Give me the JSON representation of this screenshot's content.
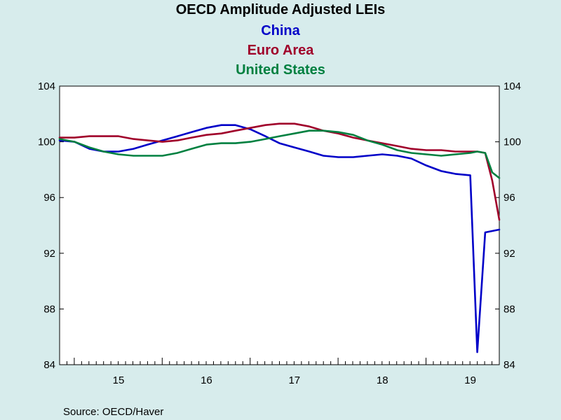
{
  "chart_data": {
    "type": "line",
    "title": "OECD Amplitude Adjusted LEIs",
    "source": "Source:  OECD/Haver",
    "ylim": [
      84,
      104
    ],
    "yticks": [
      84,
      88,
      92,
      96,
      100,
      104
    ],
    "xlim": [
      2014.83,
      2019.83
    ],
    "xtick_labels": [
      {
        "label": "15",
        "year": 2015
      },
      {
        "label": "16",
        "year": 2016
      },
      {
        "label": "17",
        "year": 2017
      },
      {
        "label": "18",
        "year": 2018
      },
      {
        "label": "19",
        "year": 2019
      }
    ],
    "grid": false,
    "legend": "title",
    "series": [
      {
        "name": "China",
        "color": "#0000c8",
        "x": [
          2014.83,
          2015.0,
          2015.17,
          2015.33,
          2015.5,
          2015.67,
          2015.83,
          2016.0,
          2016.17,
          2016.33,
          2016.5,
          2016.67,
          2016.83,
          2017.0,
          2017.17,
          2017.33,
          2017.5,
          2017.67,
          2017.83,
          2018.0,
          2018.17,
          2018.33,
          2018.5,
          2018.67,
          2018.83,
          2019.0,
          2019.17,
          2019.33,
          2019.5,
          2019.58,
          2019.67,
          2019.75,
          2019.83
        ],
        "values": [
          100.1,
          100.0,
          99.5,
          99.3,
          99.3,
          99.5,
          99.8,
          100.1,
          100.4,
          100.7,
          101.0,
          101.2,
          101.2,
          100.9,
          100.4,
          99.9,
          99.6,
          99.3,
          99.0,
          98.9,
          98.9,
          99.0,
          99.1,
          99.0,
          98.8,
          98.3,
          97.9,
          97.7,
          97.6,
          84.9,
          93.5,
          93.6,
          93.7
        ]
      },
      {
        "name": "Euro Area",
        "color": "#a0002a",
        "x": [
          2014.83,
          2015.0,
          2015.17,
          2015.33,
          2015.5,
          2015.67,
          2015.83,
          2016.0,
          2016.17,
          2016.33,
          2016.5,
          2016.67,
          2016.83,
          2017.0,
          2017.17,
          2017.33,
          2017.5,
          2017.67,
          2017.83,
          2018.0,
          2018.17,
          2018.33,
          2018.5,
          2018.67,
          2018.83,
          2019.0,
          2019.17,
          2019.33,
          2019.5,
          2019.58,
          2019.67,
          2019.75,
          2019.83
        ],
        "values": [
          100.3,
          100.3,
          100.4,
          100.4,
          100.4,
          100.2,
          100.1,
          100.0,
          100.1,
          100.3,
          100.5,
          100.6,
          100.8,
          101.0,
          101.2,
          101.3,
          101.3,
          101.1,
          100.8,
          100.6,
          100.3,
          100.1,
          99.9,
          99.7,
          99.5,
          99.4,
          99.4,
          99.3,
          99.3,
          99.3,
          99.2,
          97.2,
          94.4
        ]
      },
      {
        "name": "United States",
        "color": "#008040",
        "x": [
          2014.83,
          2015.0,
          2015.17,
          2015.33,
          2015.5,
          2015.67,
          2015.83,
          2016.0,
          2016.17,
          2016.33,
          2016.5,
          2016.67,
          2016.83,
          2017.0,
          2017.17,
          2017.33,
          2017.5,
          2017.67,
          2017.83,
          2018.0,
          2018.17,
          2018.33,
          2018.5,
          2018.67,
          2018.83,
          2019.0,
          2019.17,
          2019.33,
          2019.5,
          2019.58,
          2019.67,
          2019.75,
          2019.83
        ],
        "values": [
          100.2,
          100.0,
          99.6,
          99.3,
          99.1,
          99.0,
          99.0,
          99.0,
          99.2,
          99.5,
          99.8,
          99.9,
          99.9,
          100.0,
          100.2,
          100.4,
          100.6,
          100.8,
          100.8,
          100.7,
          100.5,
          100.1,
          99.8,
          99.4,
          99.2,
          99.1,
          99.0,
          99.1,
          99.2,
          99.3,
          99.2,
          97.8,
          97.4
        ]
      }
    ]
  }
}
